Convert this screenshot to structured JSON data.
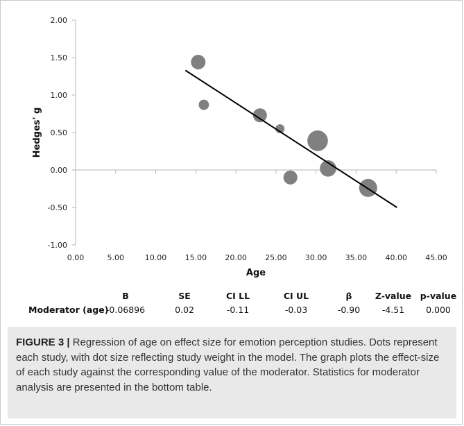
{
  "chart_data": {
    "type": "scatter",
    "xlabel": "Age",
    "ylabel": "Hedges' g",
    "xlim": [
      0,
      45
    ],
    "ylim": [
      -1,
      2
    ],
    "x_ticks": [
      "0.00",
      "5.00",
      "10.00",
      "15.00",
      "20.00",
      "25.00",
      "30.00",
      "35.00",
      "40.00",
      "45.00"
    ],
    "y_ticks": [
      "2.00",
      "1.50",
      "1.00",
      "0.50",
      "0.00",
      "-0.50",
      "-1.00"
    ],
    "grid": false,
    "points": [
      {
        "x": 15.3,
        "y": 1.44,
        "weight": 2.6
      },
      {
        "x": 16.0,
        "y": 0.87,
        "weight": 1.3
      },
      {
        "x": 23.0,
        "y": 0.73,
        "weight": 2.4
      },
      {
        "x": 25.5,
        "y": 0.55,
        "weight": 1.0
      },
      {
        "x": 26.8,
        "y": -0.1,
        "weight": 2.4
      },
      {
        "x": 30.2,
        "y": 0.39,
        "weight": 5.2
      },
      {
        "x": 31.5,
        "y": 0.02,
        "weight": 3.3
      },
      {
        "x": 36.5,
        "y": -0.24,
        "weight": 4.0
      }
    ],
    "regression_line": {
      "x": [
        13.7,
        40.1
      ],
      "y": [
        1.33,
        -0.5
      ]
    },
    "point_color": "#808080",
    "line_color": "#000000"
  },
  "stats_table": {
    "headers": [
      "B",
      "SE",
      "CI LL",
      "CI UL",
      "β",
      "Z-value",
      "p-value"
    ],
    "row_label": "Moderator (age)",
    "values": [
      "-0.06896",
      "0.02",
      "-0.11",
      "-0.03",
      "-0.90",
      "-4.51",
      "0.000"
    ]
  },
  "caption": {
    "lead": "FIGURE 3 |",
    "text": " Regression of age on effect size for emotion perception studies. Dots represent each study, with dot size reflecting study weight in the model. The graph plots the effect-size of each study against the corresponding value of the moderator. Statistics for moderator analysis are presented in the bottom table."
  }
}
